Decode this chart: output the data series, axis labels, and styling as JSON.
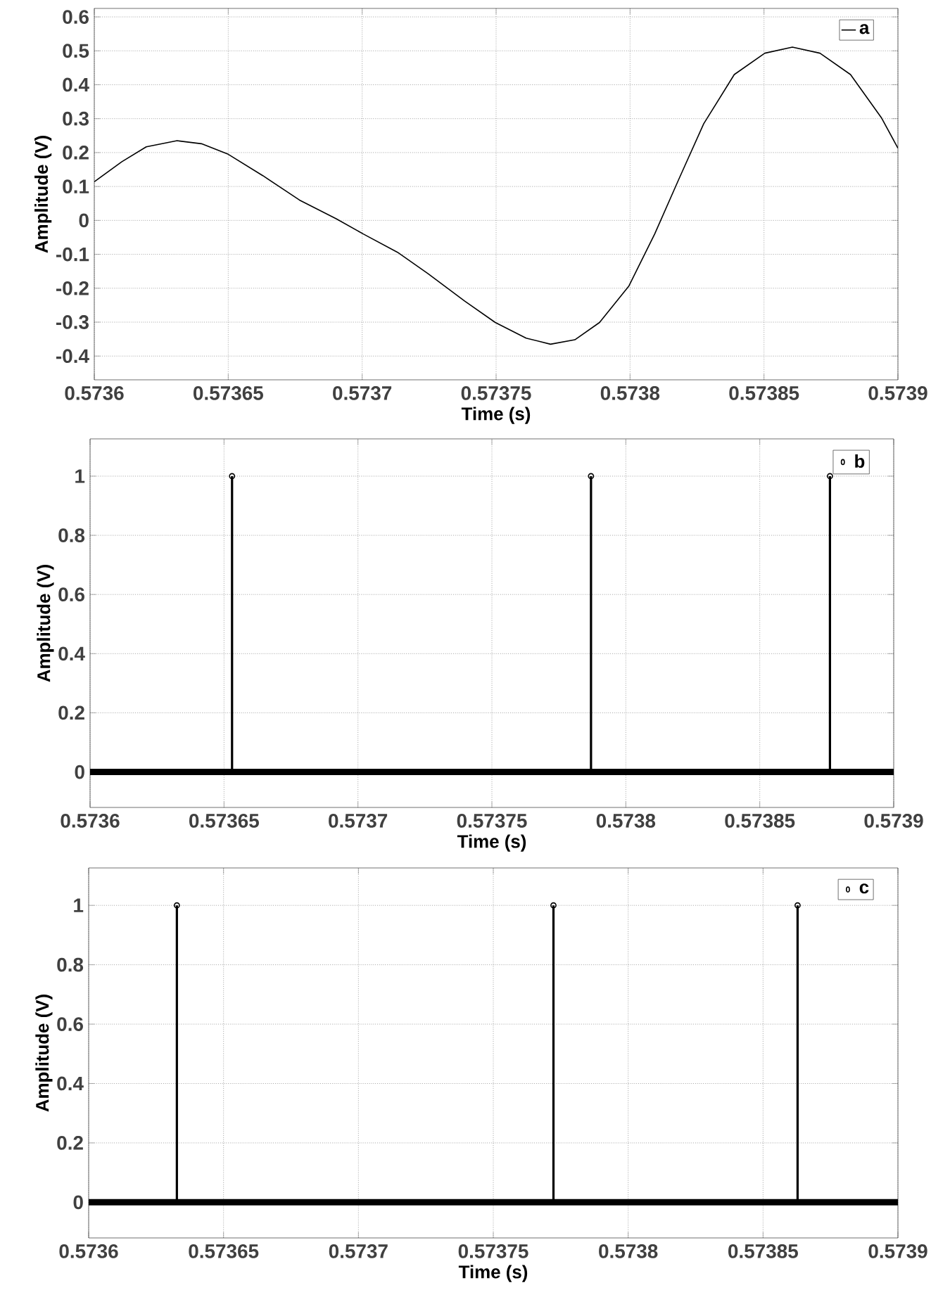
{
  "chart_data": [
    {
      "type": "line",
      "xlabel": "Time (s)",
      "ylabel": "Amplitude (V)",
      "xlim": [
        0.5736,
        0.5739
      ],
      "ylim": [
        -0.47,
        0.625
      ],
      "xticks": [
        0.5736,
        0.57365,
        0.5737,
        0.57375,
        0.5738,
        0.57385,
        0.5739
      ],
      "yticks": [
        -0.4,
        -0.3,
        -0.2,
        -0.1,
        0,
        0.1,
        0.2,
        0.3,
        0.4,
        0.5,
        0.6
      ],
      "grid": true,
      "legend": "top right",
      "series": [
        {
          "name": "a",
          "color": "#000000",
          "x": [
            0.5736,
            0.5736103,
            0.5736194,
            0.5736309,
            0.57364,
            0.57365,
            0.5736629,
            0.5736766,
            0.5736903,
            0.5737004,
            0.5737132,
            0.5737246,
            0.5737383,
            0.5737497,
            0.5737612,
            0.5737703,
            0.5737794,
            0.5737886,
            0.5737996,
            0.5738092,
            0.5738183,
            0.5738275,
            0.5738389,
            0.5738503,
            0.5738606,
            0.5738709,
            0.5738823,
            0.5738938,
            0.5739
          ],
          "values": [
            0.114,
            0.173,
            0.217,
            0.235,
            0.226,
            0.195,
            0.132,
            0.06,
            0.005,
            -0.04,
            -0.094,
            -0.157,
            -0.238,
            -0.301,
            -0.347,
            -0.365,
            -0.352,
            -0.301,
            -0.193,
            -0.04,
            0.123,
            0.285,
            0.43,
            0.493,
            0.511,
            0.493,
            0.43,
            0.303,
            0.213
          ]
        }
      ]
    },
    {
      "type": "lollipop",
      "xlabel": "Time (s)",
      "ylabel": "Amplitude (V)",
      "xlim": [
        0.5736,
        0.5739
      ],
      "ylim": [
        -0.12,
        1.126
      ],
      "xticks": [
        0.5736,
        0.57365,
        0.5737,
        0.57375,
        0.5738,
        0.57385,
        0.5739
      ],
      "yticks": [
        0,
        0.2,
        0.4,
        0.6,
        0.8,
        1
      ],
      "grid": true,
      "legend": "top right",
      "marker": "circle",
      "ref_lines": [
        {
          "axis": "y",
          "value": 0,
          "color": "#000000"
        }
      ],
      "series": [
        {
          "name": "b",
          "color": "#000000",
          "x": [
            0.573653,
            0.573787,
            0.5738762
          ],
          "values": [
            1,
            1,
            1
          ]
        }
      ]
    },
    {
      "type": "lollipop",
      "xlabel": "Time (s)",
      "ylabel": "Amplitude (V)",
      "xlim": [
        0.5736,
        0.5739
      ],
      "ylim": [
        -0.12,
        1.126
      ],
      "xticks": [
        0.5736,
        0.57365,
        0.5737,
        0.57375,
        0.5738,
        0.57385,
        0.5739
      ],
      "yticks": [
        0,
        0.2,
        0.4,
        0.6,
        0.8,
        1
      ],
      "grid": true,
      "legend": "top right",
      "marker": "circle",
      "ref_lines": [
        {
          "axis": "y",
          "value": 0,
          "color": "#000000"
        }
      ],
      "series": [
        {
          "name": "c",
          "color": "#000000",
          "x": [
            0.5736327,
            0.5737723,
            0.5738628
          ],
          "values": [
            1,
            1,
            1
          ]
        }
      ]
    }
  ]
}
